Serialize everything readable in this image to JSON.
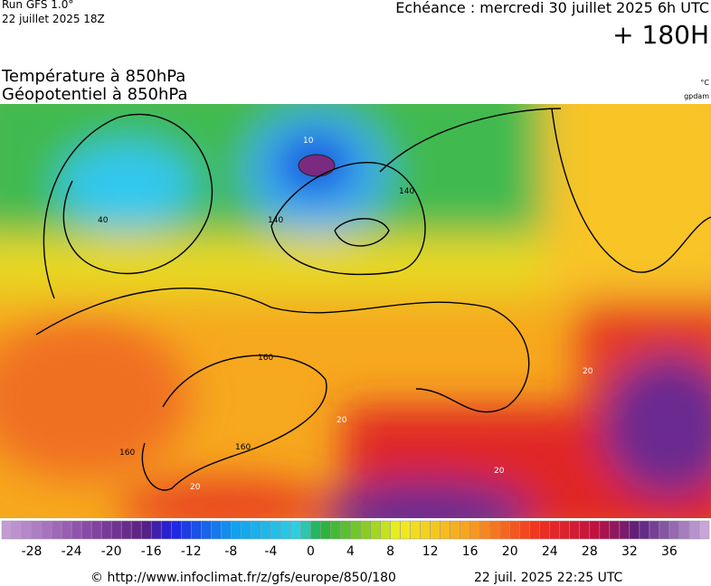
{
  "header": {
    "run": "Run GFS 1.0°",
    "run_date": "22 juillet 2025 18Z",
    "echeance": "Echéance : mercredi 30 juillet 2025 6h UTC",
    "lead": "+ 180H",
    "title1": "Température à 850hPa",
    "title2": "Géopotentiel à 850hPa",
    "unit1": "°C",
    "unit2": "gpdam"
  },
  "map": {
    "labels": [
      "10",
      "40",
      "140",
      "140",
      "160",
      "160",
      "160",
      "20",
      "20",
      "20",
      "20"
    ]
  },
  "colorbar": {
    "range": [
      -31,
      40
    ],
    "ticks": [
      -28,
      -24,
      -20,
      -16,
      -12,
      -8,
      -4,
      0,
      4,
      8,
      12,
      16,
      20,
      24,
      28,
      32,
      36
    ]
  },
  "footer": {
    "url": "© http://www.infoclimat.fr/z/gfs/europe/850/180",
    "date": "22 juil. 2025 22:25 UTC"
  }
}
